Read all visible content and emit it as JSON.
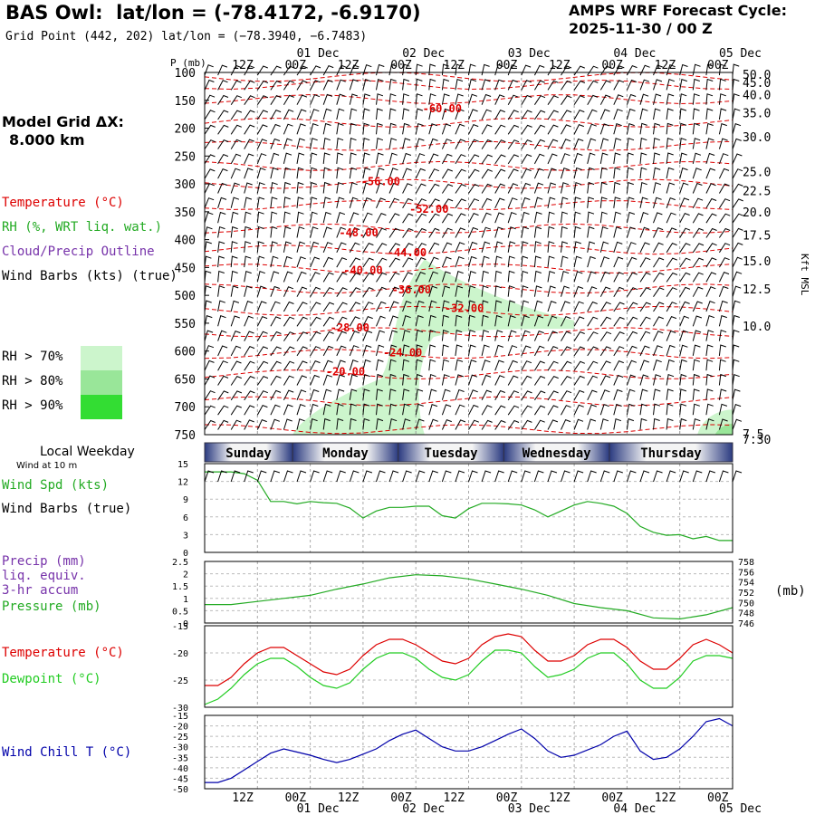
{
  "header": {
    "title": "BAS Owl:  lat/lon = (-78.4172, -6.9170)",
    "subtitle": "Grid Point (442, 202) lat/lon = (−78.3940, −6.7483)",
    "cycle_line1": "AMPS WRF Forecast Cycle:",
    "cycle_line2": "2025-11-30 / 00  Z"
  },
  "legend": {
    "grid_line1": "Model Grid ΔX:",
    "grid_line2": "8.000 km",
    "temperature": "Temperature (°C)",
    "rh": "RH (%, WRT liq. wat.)",
    "cloud": "Cloud/Precip Outline",
    "wind": "Wind Barbs (kts) (true)",
    "rh_levels": [
      {
        "label": "RH > 70%",
        "color": "#ccf5cc"
      },
      {
        "label": "RH > 80%",
        "color": "#99e699"
      },
      {
        "label": "RH > 90%",
        "color": "#33dd33"
      }
    ],
    "weekday": "Local Weekday",
    "wind10": "Wind at 10 m",
    "wspd": "Wind Spd (kts)",
    "wbarbs": "Wind Barbs (true)",
    "precip1": "Precip (mm)",
    "precip2": "liq. equiv.",
    "precip3": "3-hr accum",
    "pressure": "Pressure (mb)",
    "temp2": "Temperature (°C)",
    "dew": "Dewpoint (°C)",
    "chill": "Wind Chill T (°C)"
  },
  "colors": {
    "temperature": "#dd0000",
    "rh": "#22aa22",
    "cloud": "#7733aa",
    "wind": "#000000",
    "dewpoint": "#22cc22",
    "windchill": "#0000aa",
    "weekday_band": "#5a6aa8"
  },
  "time_axis": {
    "hours": [
      0,
      120
    ],
    "top_ticks": [
      "12Z",
      "00Z",
      "12Z",
      "00Z",
      "12Z",
      "00Z",
      "12Z",
      "00Z",
      "12Z",
      "00Z"
    ],
    "top_dates": [
      "01 Dec",
      "02 Dec",
      "03 Dec",
      "04 Dec",
      "05 Dec"
    ],
    "tick_hours": [
      12,
      24,
      36,
      48,
      60,
      72,
      84,
      96,
      108,
      120
    ]
  },
  "weekdays": [
    "Sunday",
    "Monday",
    "Tuesday",
    "Wednesday",
    "Thursday"
  ],
  "chart_data": [
    {
      "type": "heatmap",
      "panel": "pressure-time cross section",
      "ylabel_left": "P (mb)",
      "ylabel_right": "Kft MSL",
      "pressure_ticks": [
        100,
        150,
        200,
        250,
        300,
        350,
        400,
        450,
        500,
        550,
        600,
        650,
        700,
        750
      ],
      "ylim": [
        100,
        750
      ],
      "height_ticks": [
        {
          "label": "50.0",
          "p": 103
        },
        {
          "label": "45.0",
          "p": 118
        },
        {
          "label": "40.0",
          "p": 140
        },
        {
          "label": "35.0",
          "p": 172
        },
        {
          "label": "30.0",
          "p": 215
        },
        {
          "label": "25.0",
          "p": 278
        },
        {
          "label": "22.5",
          "p": 312
        },
        {
          "label": "20.0",
          "p": 350
        },
        {
          "label": "17.5",
          "p": 392
        },
        {
          "label": "15.0",
          "p": 438
        },
        {
          "label": "12.5",
          "p": 488
        },
        {
          "label": "10.0",
          "p": 555
        },
        {
          "label": "7.5",
          "p": 748
        }
      ],
      "bottom_height_label": "7.30",
      "temperature_labels": [
        {
          "label": "-60.00",
          "h": 54,
          "p": 165
        },
        {
          "label": "-56.00",
          "h": 40,
          "p": 296
        },
        {
          "label": "-52.00",
          "h": 51,
          "p": 345
        },
        {
          "label": "-48.00",
          "h": 35,
          "p": 388
        },
        {
          "label": "-44.00",
          "h": 46,
          "p": 423
        },
        {
          "label": "-40.00",
          "h": 36,
          "p": 455
        },
        {
          "label": "-36.00",
          "h": 47,
          "p": 490
        },
        {
          "label": "-32.00",
          "h": 59,
          "p": 523
        },
        {
          "label": "-28.00",
          "h": 33,
          "p": 558
        },
        {
          "label": "-24.00",
          "h": 45,
          "p": 603
        },
        {
          "label": "-20.00",
          "h": 32,
          "p": 637
        }
      ]
    },
    {
      "type": "line",
      "panel": "wind speed",
      "ylim": [
        0,
        15
      ],
      "yticks": [
        0,
        3,
        6,
        9,
        12,
        15
      ],
      "series": [
        {
          "name": "Wind Spd (kts)",
          "x": [
            0,
            3,
            6,
            9,
            12,
            15,
            18,
            21,
            24,
            27,
            30,
            33,
            36,
            39,
            42,
            45,
            48,
            51,
            54,
            57,
            60,
            63,
            66,
            69,
            72,
            75,
            78,
            81,
            84,
            87,
            90,
            93,
            96,
            99,
            102,
            105,
            108,
            111,
            114,
            117,
            120
          ],
          "values": [
            13.6,
            13.6,
            13.6,
            13.3,
            12.2,
            8.6,
            8.6,
            8.2,
            8.6,
            8.4,
            8.3,
            7.5,
            5.8,
            7.0,
            7.6,
            7.6,
            7.8,
            7.8,
            6.2,
            5.8,
            7.4,
            8.3,
            8.3,
            8.2,
            8.0,
            7.2,
            6.0,
            7.0,
            8.0,
            8.6,
            8.3,
            7.8,
            6.6,
            4.4,
            3.4,
            2.9,
            3.0,
            2.3,
            2.7,
            2.0,
            2.0
          ]
        }
      ]
    },
    {
      "type": "line",
      "panel": "precip and pressure",
      "ylim": [
        0,
        2.5
      ],
      "yticks": [
        0,
        0.5,
        1,
        1.5,
        2,
        2.5
      ],
      "ylim_right": [
        746,
        758
      ],
      "yticks_right": [
        746,
        748,
        750,
        752,
        754,
        756,
        758
      ],
      "ylabel_right": "(mb)",
      "series": [
        {
          "name": "Pressure (mb)",
          "x": [
            0,
            6,
            12,
            18,
            24,
            30,
            36,
            42,
            48,
            54,
            60,
            66,
            72,
            78,
            84,
            90,
            96,
            102,
            108,
            114,
            120
          ],
          "values": [
            749.6,
            749.6,
            750.2,
            750.8,
            751.4,
            752.6,
            753.6,
            754.8,
            755.4,
            755.2,
            754.6,
            753.6,
            752.6,
            751.4,
            749.8,
            749.0,
            748.4,
            747.0,
            746.8,
            747.6,
            749.0
          ]
        }
      ]
    },
    {
      "type": "line",
      "panel": "temperature and dewpoint",
      "ylim": [
        -30,
        -15
      ],
      "yticks": [
        -30,
        -25,
        -20,
        -15
      ],
      "series": [
        {
          "name": "Temperature (°C)",
          "x": [
            0,
            3,
            6,
            9,
            12,
            15,
            18,
            21,
            24,
            27,
            30,
            33,
            36,
            39,
            42,
            45,
            48,
            51,
            54,
            57,
            60,
            63,
            66,
            69,
            72,
            75,
            78,
            81,
            84,
            87,
            90,
            93,
            96,
            99,
            102,
            105,
            108,
            111,
            114,
            117,
            120
          ],
          "values": [
            -26,
            -26,
            -24.5,
            -22,
            -20,
            -19,
            -19,
            -20.5,
            -22,
            -23.5,
            -24,
            -23,
            -20.5,
            -18.5,
            -17.5,
            -17.5,
            -18.5,
            -20,
            -21.5,
            -22,
            -21,
            -18.5,
            -17,
            -16.5,
            -17,
            -19.5,
            -21.5,
            -21.5,
            -20.5,
            -18.5,
            -17.5,
            -17.5,
            -19,
            -21.5,
            -23,
            -23,
            -21,
            -18.5,
            -17.5,
            -18.5,
            -20
          ]
        },
        {
          "name": "Dewpoint (°C)",
          "x": [
            0,
            3,
            6,
            9,
            12,
            15,
            18,
            21,
            24,
            27,
            30,
            33,
            36,
            39,
            42,
            45,
            48,
            51,
            54,
            57,
            60,
            63,
            66,
            69,
            72,
            75,
            78,
            81,
            84,
            87,
            90,
            93,
            96,
            99,
            102,
            105,
            108,
            111,
            114,
            117,
            120
          ],
          "values": [
            -29.5,
            -28.5,
            -26.5,
            -24,
            -22,
            -21,
            -21,
            -22.5,
            -24.5,
            -26,
            -26.5,
            -25.5,
            -23,
            -21,
            -20,
            -20,
            -21,
            -23,
            -24.5,
            -25,
            -24,
            -21.5,
            -19.5,
            -19.5,
            -20,
            -22.5,
            -24.5,
            -24,
            -23,
            -21,
            -20,
            -20,
            -22,
            -25,
            -26.5,
            -26.5,
            -24.5,
            -21.5,
            -20.5,
            -20.5,
            -21
          ]
        }
      ]
    },
    {
      "type": "line",
      "panel": "wind chill",
      "ylim": [
        -50,
        -15
      ],
      "yticks": [
        -50,
        -45,
        -40,
        -35,
        -30,
        -25,
        -20,
        -15
      ],
      "series": [
        {
          "name": "Wind Chill T (°C)",
          "x": [
            0,
            3,
            6,
            9,
            12,
            15,
            18,
            21,
            24,
            27,
            30,
            33,
            36,
            39,
            42,
            45,
            48,
            51,
            54,
            57,
            60,
            63,
            66,
            69,
            72,
            75,
            78,
            81,
            84,
            87,
            90,
            93,
            96,
            99,
            102,
            105,
            108,
            111,
            114,
            117,
            120
          ],
          "values": [
            -47,
            -47,
            -45,
            -41,
            -37,
            -33,
            -31,
            -32.5,
            -34,
            -36,
            -37.5,
            -36,
            -33.5,
            -31,
            -27,
            -24,
            -22,
            -26,
            -30,
            -32,
            -32,
            -30,
            -27,
            -24,
            -21.5,
            -26,
            -32,
            -35,
            -34,
            -31.5,
            -29,
            -25,
            -22.5,
            -32,
            -36,
            -35,
            -31,
            -25,
            -18,
            -16.5,
            -20
          ]
        }
      ]
    }
  ]
}
